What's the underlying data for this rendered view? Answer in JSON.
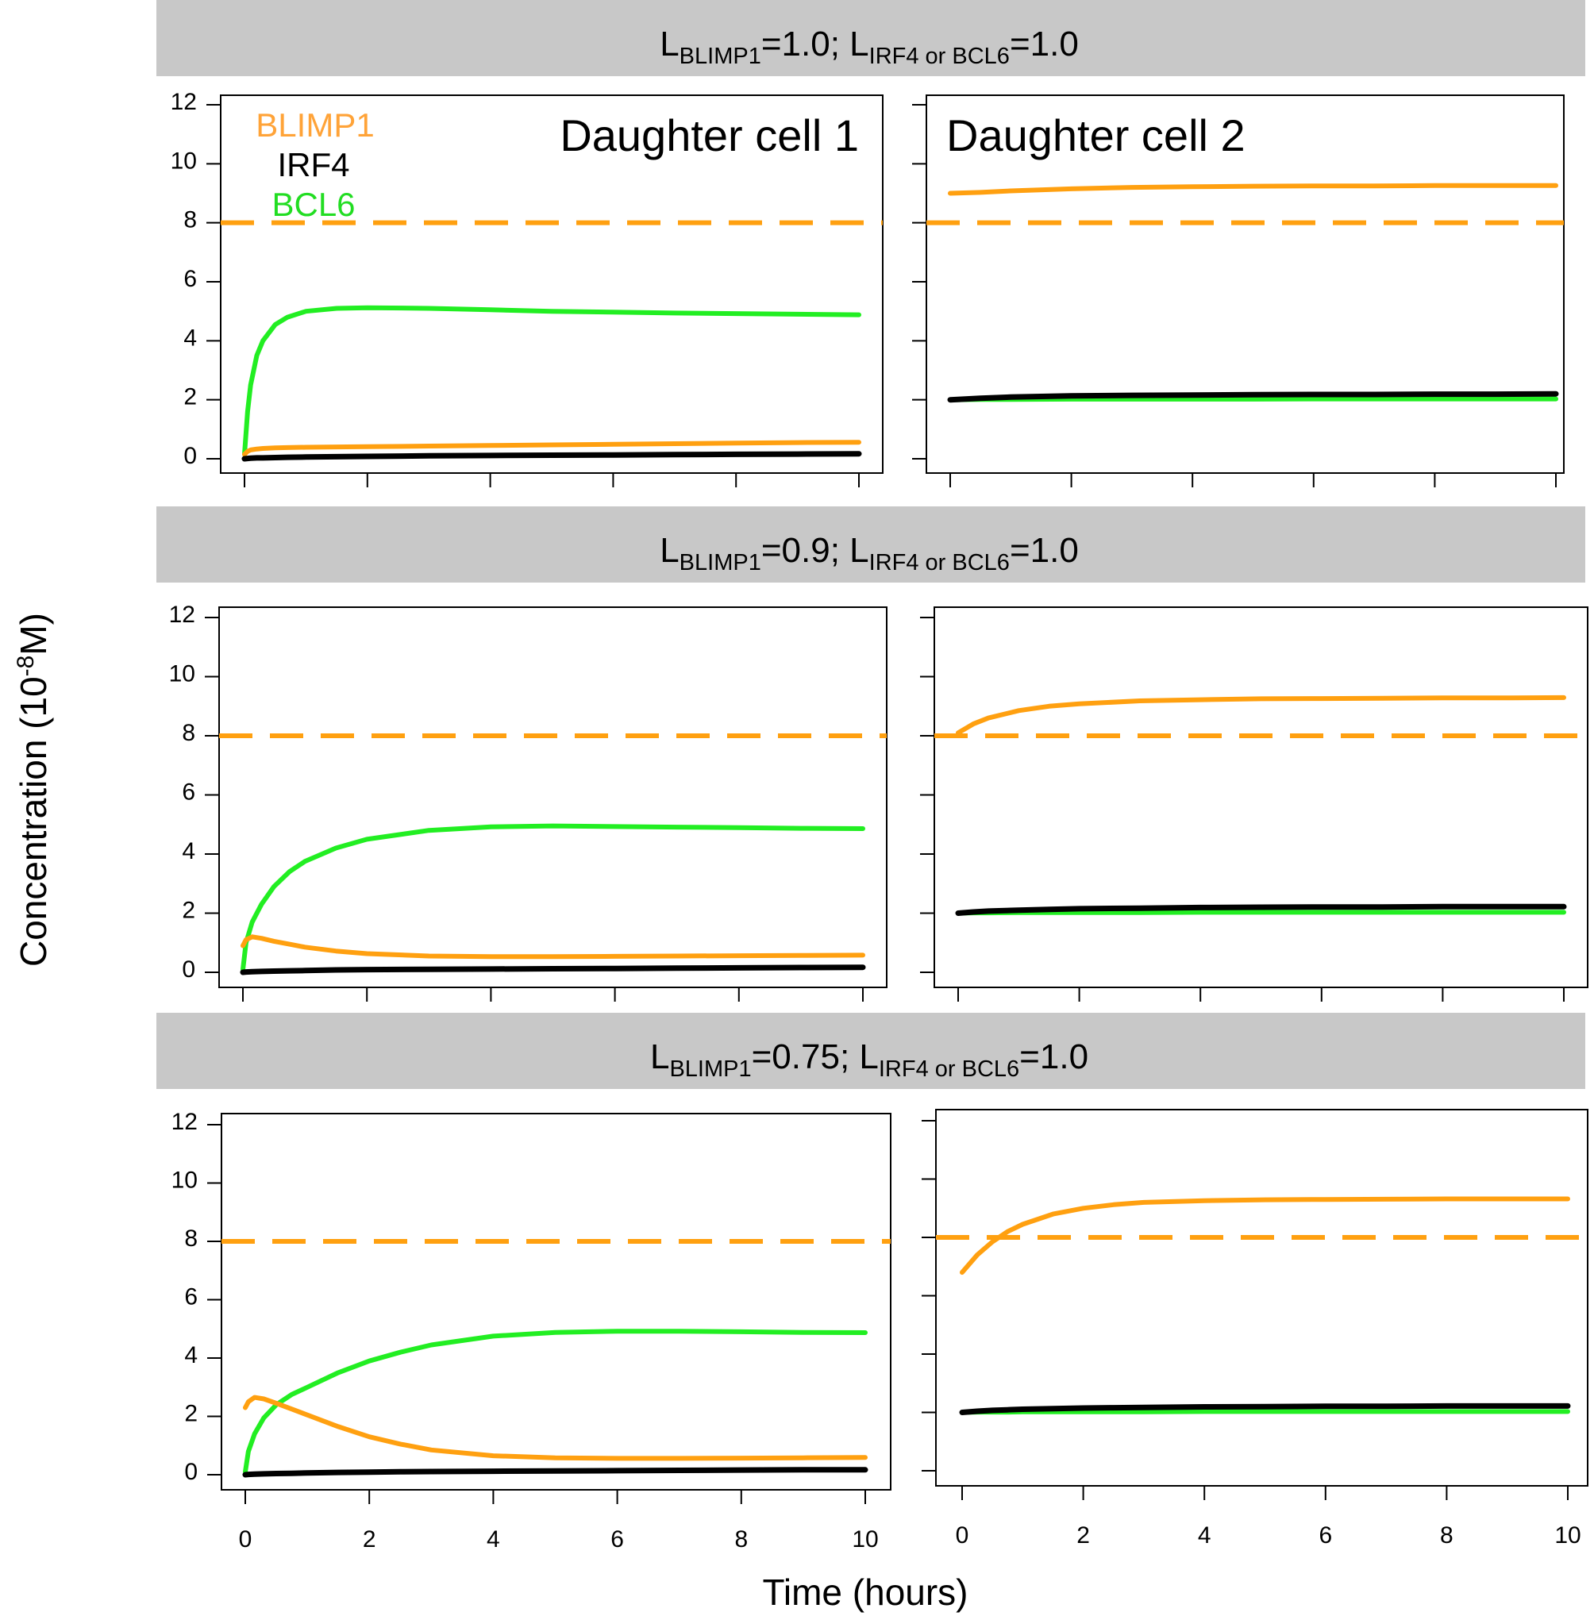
{
  "chart_data": {
    "type": "line",
    "y_axis_title": "Concentration (10",
    "y_axis_title_sup": "-8",
    "y_axis_title_tail": "M)",
    "x_axis_title": "Time (hours)",
    "x_ticks": [
      0,
      2,
      4,
      6,
      8,
      10
    ],
    "y_ticks": [
      0,
      2,
      4,
      6,
      8,
      10,
      12
    ],
    "xlim": [
      0,
      10
    ],
    "ylim": [
      0,
      12
    ],
    "threshold": {
      "name": "BLIMP1 threshold",
      "value": 8,
      "style": "dashed",
      "color": "#ffa010"
    },
    "legend": [
      {
        "label": "BLIMP1",
        "color": "#ffa338"
      },
      {
        "label": "IRF4",
        "color": "#000000"
      },
      {
        "label": "BCL6",
        "color": "#22dd22"
      }
    ],
    "series_colors": {
      "BLIMP1": "#ffa010",
      "IRF4": "#000000",
      "BCL6": "#22ee22"
    },
    "panel_titles": [
      "Daughter cell 1",
      "Daughter cell 2"
    ],
    "rows": [
      {
        "strip": {
          "L": "L",
          "sub1": "BLIMP1",
          "val1": "=1.0; ",
          "L2": "L",
          "sub2": "IRF4 or BCL6",
          "val2": "=1.0"
        },
        "panels": [
          {
            "x": [
              0,
              0.05,
              0.1,
              0.2,
              0.3,
              0.5,
              0.7,
              1,
              1.5,
              2,
              3,
              4,
              5,
              6,
              7,
              8,
              9,
              10
            ],
            "series": [
              {
                "name": "BLIMP1",
                "values": [
                  0.15,
                  0.25,
                  0.3,
                  0.33,
                  0.35,
                  0.37,
                  0.38,
                  0.39,
                  0.4,
                  0.41,
                  0.43,
                  0.45,
                  0.47,
                  0.49,
                  0.51,
                  0.53,
                  0.55,
                  0.56
                ]
              },
              {
                "name": "IRF4",
                "values": [
                  0.0,
                  0.01,
                  0.02,
                  0.03,
                  0.03,
                  0.04,
                  0.05,
                  0.06,
                  0.07,
                  0.08,
                  0.1,
                  0.11,
                  0.12,
                  0.13,
                  0.14,
                  0.15,
                  0.16,
                  0.17
                ]
              },
              {
                "name": "BCL6",
                "values": [
                  0.15,
                  1.6,
                  2.5,
                  3.5,
                  4.0,
                  4.55,
                  4.8,
                  5.0,
                  5.1,
                  5.12,
                  5.1,
                  5.05,
                  5.0,
                  4.97,
                  4.94,
                  4.92,
                  4.9,
                  4.88
                ]
              }
            ]
          },
          {
            "x": [
              0,
              0.5,
              1,
              2,
              3,
              4,
              5,
              6,
              7,
              8,
              9,
              10
            ],
            "series": [
              {
                "name": "BLIMP1",
                "values": [
                  9.0,
                  9.03,
                  9.08,
                  9.15,
                  9.2,
                  9.22,
                  9.24,
                  9.25,
                  9.25,
                  9.26,
                  9.26,
                  9.26
                ]
              },
              {
                "name": "IRF4",
                "values": [
                  2.0,
                  2.05,
                  2.09,
                  2.13,
                  2.15,
                  2.16,
                  2.17,
                  2.18,
                  2.18,
                  2.19,
                  2.19,
                  2.2
                ]
              },
              {
                "name": "BCL6",
                "values": [
                  2.0,
                  2.01,
                  2.01,
                  2.02,
                  2.02,
                  2.02,
                  2.02,
                  2.03,
                  2.03,
                  2.03,
                  2.03,
                  2.03
                ]
              }
            ]
          }
        ]
      },
      {
        "strip": {
          "L": "L",
          "sub1": "BLIMP1",
          "val1": "=0.9; ",
          "L2": "L",
          "sub2": "IRF4 or BCL6",
          "val2": "=1.0"
        },
        "panels": [
          {
            "x": [
              0,
              0.05,
              0.15,
              0.3,
              0.5,
              0.75,
              1,
              1.5,
              2,
              3,
              4,
              5,
              6,
              7,
              8,
              9,
              10
            ],
            "series": [
              {
                "name": "BLIMP1",
                "values": [
                  0.9,
                  1.1,
                  1.2,
                  1.15,
                  1.05,
                  0.95,
                  0.85,
                  0.72,
                  0.63,
                  0.55,
                  0.53,
                  0.53,
                  0.54,
                  0.55,
                  0.56,
                  0.57,
                  0.58
                ]
              },
              {
                "name": "IRF4",
                "values": [
                  0.0,
                  0.01,
                  0.02,
                  0.03,
                  0.04,
                  0.05,
                  0.06,
                  0.08,
                  0.09,
                  0.1,
                  0.11,
                  0.12,
                  0.13,
                  0.14,
                  0.15,
                  0.16,
                  0.17
                ]
              },
              {
                "name": "BCL6",
                "values": [
                  0.1,
                  1.0,
                  1.7,
                  2.3,
                  2.9,
                  3.4,
                  3.75,
                  4.2,
                  4.5,
                  4.8,
                  4.92,
                  4.95,
                  4.93,
                  4.91,
                  4.89,
                  4.87,
                  4.86
                ]
              }
            ]
          },
          {
            "x": [
              0,
              0.25,
              0.5,
              1,
              1.5,
              2,
              3,
              4,
              5,
              6,
              7,
              8,
              9,
              10
            ],
            "series": [
              {
                "name": "BLIMP1",
                "values": [
                  8.1,
                  8.4,
                  8.6,
                  8.85,
                  9.0,
                  9.08,
                  9.18,
                  9.22,
                  9.25,
                  9.26,
                  9.27,
                  9.28,
                  9.28,
                  9.29
                ]
              },
              {
                "name": "IRF4",
                "values": [
                  2.0,
                  2.04,
                  2.07,
                  2.1,
                  2.13,
                  2.15,
                  2.17,
                  2.19,
                  2.2,
                  2.21,
                  2.21,
                  2.22,
                  2.22,
                  2.22
                ]
              },
              {
                "name": "BCL6",
                "values": [
                  2.0,
                  2.01,
                  2.01,
                  2.02,
                  2.02,
                  2.02,
                  2.02,
                  2.03,
                  2.03,
                  2.03,
                  2.03,
                  2.03,
                  2.03,
                  2.03
                ]
              }
            ]
          }
        ]
      },
      {
        "strip": {
          "L": "L",
          "sub1": "BLIMP1",
          "val1": "=0.75; ",
          "L2": "L",
          "sub2": "IRF4 or BCL6",
          "val2": "=1.0"
        },
        "panels": [
          {
            "x": [
              0,
              0.05,
              0.15,
              0.3,
              0.5,
              0.75,
              1,
              1.5,
              2,
              2.5,
              3,
              4,
              5,
              6,
              7,
              8,
              9,
              10
            ],
            "series": [
              {
                "name": "BLIMP1",
                "values": [
                  2.3,
                  2.5,
                  2.65,
                  2.6,
                  2.45,
                  2.25,
                  2.05,
                  1.65,
                  1.3,
                  1.05,
                  0.85,
                  0.65,
                  0.58,
                  0.56,
                  0.56,
                  0.57,
                  0.58,
                  0.59
                ]
              },
              {
                "name": "IRF4",
                "values": [
                  0.0,
                  0.01,
                  0.02,
                  0.03,
                  0.04,
                  0.05,
                  0.06,
                  0.08,
                  0.09,
                  0.1,
                  0.11,
                  0.12,
                  0.13,
                  0.14,
                  0.15,
                  0.16,
                  0.17,
                  0.17
                ]
              },
              {
                "name": "BCL6",
                "values": [
                  0.1,
                  0.8,
                  1.4,
                  1.95,
                  2.4,
                  2.75,
                  3.0,
                  3.5,
                  3.9,
                  4.2,
                  4.45,
                  4.75,
                  4.88,
                  4.92,
                  4.92,
                  4.9,
                  4.88,
                  4.87
                ]
              }
            ]
          },
          {
            "x": [
              0,
              0.25,
              0.5,
              0.75,
              1,
              1.5,
              2,
              2.5,
              3,
              4,
              5,
              6,
              7,
              8,
              9,
              10
            ],
            "series": [
              {
                "name": "BLIMP1",
                "values": [
                  6.8,
                  7.4,
                  7.85,
                  8.2,
                  8.45,
                  8.8,
                  9.0,
                  9.12,
                  9.2,
                  9.26,
                  9.29,
                  9.3,
                  9.31,
                  9.32,
                  9.32,
                  9.32
                ]
              },
              {
                "name": "IRF4",
                "values": [
                  2.0,
                  2.04,
                  2.07,
                  2.09,
                  2.11,
                  2.13,
                  2.15,
                  2.16,
                  2.17,
                  2.19,
                  2.2,
                  2.21,
                  2.21,
                  2.22,
                  2.22,
                  2.22
                ]
              },
              {
                "name": "BCL6",
                "values": [
                  2.0,
                  2.01,
                  2.01,
                  2.01,
                  2.02,
                  2.02,
                  2.02,
                  2.02,
                  2.02,
                  2.03,
                  2.03,
                  2.03,
                  2.03,
                  2.03,
                  2.03,
                  2.03
                ]
              }
            ]
          }
        ]
      }
    ]
  }
}
